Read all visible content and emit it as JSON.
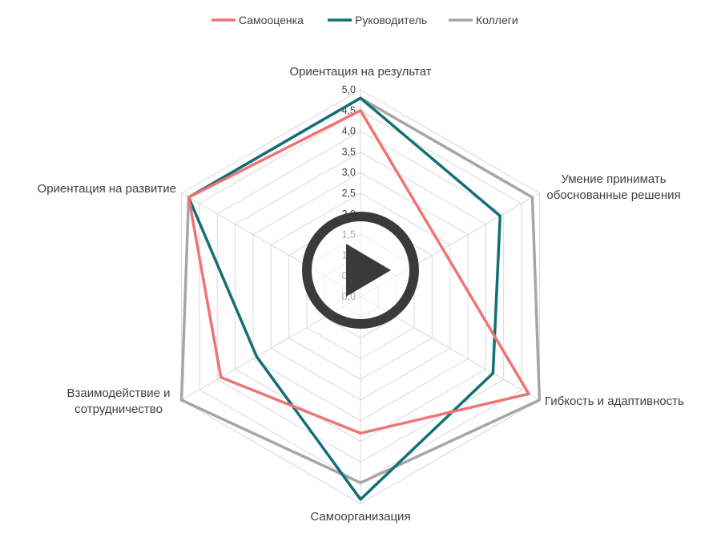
{
  "chart_data": {
    "type": "radar",
    "title": "",
    "categories": [
      "Ориентация на результат",
      "Умение принимать обоснованные решения",
      "Гибкость и адаптивность",
      "Самоорганизация",
      "Взаимодействие и сотрудничество",
      "Ориентация на развитие"
    ],
    "category_lines": [
      [
        "Ориентация на результат"
      ],
      [
        "Умение принимать",
        "обоснованные решения"
      ],
      [
        "Гибкость и адаптивность"
      ],
      [
        "Самоорганизация"
      ],
      [
        "Взаимодействие и",
        "сотрудничество"
      ],
      [
        "Ориентация на развитие"
      ]
    ],
    "rmin": 0,
    "rmax": 5,
    "tick_step": 0.5,
    "tick_labels": [
      "0,0",
      "0,5",
      "1,0",
      "1,5",
      "2,0",
      "2,5",
      "3,0",
      "3,5",
      "4,0",
      "4,5",
      "5,0"
    ],
    "legend_position": "top",
    "series": [
      {
        "name": "Самооценка",
        "color": "#f07474",
        "values": [
          4.5,
          2.3,
          4.7,
          3.3,
          3.9,
          4.8
        ]
      },
      {
        "name": "Руководитель",
        "color": "#136f77",
        "values": [
          4.8,
          3.9,
          3.7,
          4.9,
          2.9,
          4.8
        ]
      },
      {
        "name": "Коллеги",
        "color": "#a6a6a6",
        "values": [
          4.8,
          4.8,
          5.0,
          4.5,
          5.0,
          4.8
        ]
      }
    ]
  }
}
